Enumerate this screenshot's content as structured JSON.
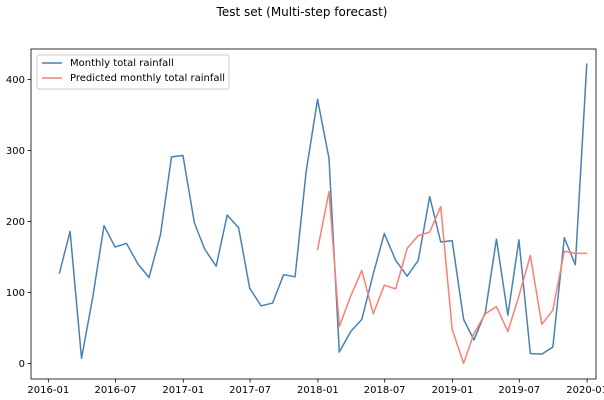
{
  "chart_data": {
    "type": "line",
    "title": "Test set (Multi-step forecast)",
    "xlabel": "",
    "ylabel": "",
    "x_range": [
      "2015-11-15",
      "2020-01-25"
    ],
    "y_range": [
      -22,
      443
    ],
    "x_ticks": [
      "2016-01-01",
      "2016-07-01",
      "2017-01-01",
      "2017-07-01",
      "2018-01-01",
      "2018-07-01",
      "2019-01-01",
      "2019-07-01",
      "2020-01-01"
    ],
    "x_tick_labels": [
      "2016-01",
      "2016-07",
      "2017-01",
      "2017-07",
      "2018-01",
      "2018-07",
      "2019-01",
      "2019-07",
      "2020-01"
    ],
    "y_ticks": [
      0,
      100,
      200,
      300,
      400
    ],
    "y_tick_labels": [
      "0",
      "100",
      "200",
      "300",
      "400"
    ],
    "grid": false,
    "legend_position": "top-left",
    "series": [
      {
        "name": "Monthly total rainfall",
        "color": "#4682b4",
        "x": [
          "2016-01-31",
          "2016-02-29",
          "2016-03-31",
          "2016-04-30",
          "2016-05-31",
          "2016-06-30",
          "2016-07-31",
          "2016-08-31",
          "2016-09-30",
          "2016-10-31",
          "2016-11-30",
          "2016-12-31",
          "2017-01-31",
          "2017-02-28",
          "2017-03-31",
          "2017-04-30",
          "2017-05-31",
          "2017-06-30",
          "2017-07-31",
          "2017-08-31",
          "2017-09-30",
          "2017-10-31",
          "2017-11-30",
          "2017-12-31",
          "2018-01-31",
          "2018-02-28",
          "2018-03-31",
          "2018-04-30",
          "2018-05-31",
          "2018-06-30",
          "2018-07-31",
          "2018-08-31",
          "2018-09-30",
          "2018-10-31",
          "2018-11-30",
          "2018-12-31",
          "2019-01-31",
          "2019-02-28",
          "2019-03-31",
          "2019-04-30",
          "2019-05-31",
          "2019-06-30",
          "2019-07-31",
          "2019-08-31",
          "2019-09-30",
          "2019-10-31",
          "2019-11-30",
          "2019-12-31"
        ],
        "values": [
          127,
          186,
          7,
          92,
          194,
          164,
          169,
          140,
          121,
          181,
          291,
          293,
          198,
          161,
          137,
          209,
          191,
          106,
          81,
          85,
          125,
          122,
          270,
          372,
          289,
          16,
          45,
          62,
          126,
          183,
          145,
          123,
          145,
          235,
          171,
          173,
          62,
          33,
          72,
          175,
          68,
          174,
          14,
          13,
          23,
          177,
          139,
          422
        ]
      },
      {
        "name": "Predicted monthly total rainfall",
        "color": "#fa8072",
        "x": [
          "2017-12-31",
          "2018-01-31",
          "2018-02-28",
          "2018-03-31",
          "2018-04-30",
          "2018-05-31",
          "2018-06-30",
          "2018-07-31",
          "2018-08-31",
          "2018-09-30",
          "2018-10-31",
          "2018-11-30",
          "2018-12-31",
          "2019-01-31",
          "2019-02-28",
          "2019-03-31",
          "2019-04-30",
          "2019-05-31",
          "2019-06-30",
          "2019-07-31",
          "2019-08-31",
          "2019-09-30",
          "2019-10-31",
          "2019-11-30",
          "2019-12-31"
        ],
        "values": [
          160,
          242,
          52,
          95,
          131,
          70,
          110,
          105,
          162,
          180,
          185,
          221,
          48,
          0,
          42,
          70,
          80,
          45,
          95,
          152,
          55,
          75,
          158,
          155,
          155
        ]
      }
    ]
  }
}
